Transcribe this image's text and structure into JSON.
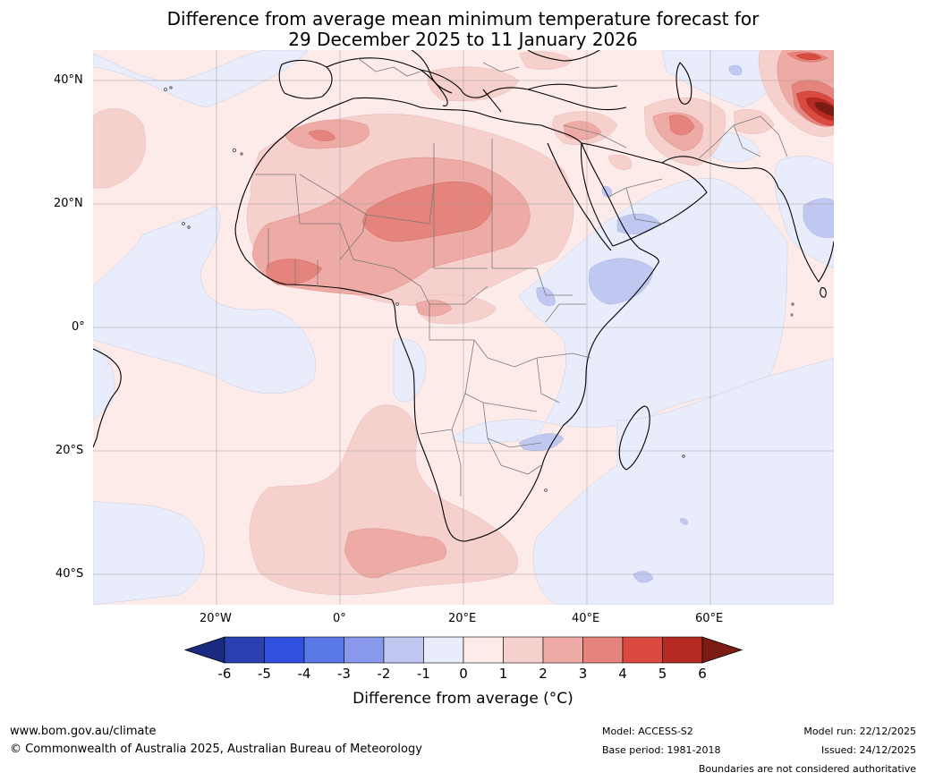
{
  "title": {
    "line1": "Difference from average mean minimum temperature forecast for",
    "line2": "29 December 2025 to 11 January 2026"
  },
  "axes": {
    "lat_labels": [
      "40°N",
      "20°N",
      "0°",
      "20°S",
      "40°S"
    ],
    "lon_labels": [
      "20°W",
      "0°",
      "20°E",
      "40°E",
      "60°E"
    ]
  },
  "colorbar": {
    "ticks": [
      "-6",
      "-5",
      "-4",
      "-3",
      "-2",
      "-1",
      "0",
      "1",
      "2",
      "3",
      "4",
      "5",
      "6"
    ],
    "colors": [
      "#1a2a80",
      "#2a40b0",
      "#3050e0",
      "#5a78e6",
      "#8898ea",
      "#c0c8f2",
      "#e8ecfb",
      "#fcebe9",
      "#f5d0cd",
      "#eeaaa5",
      "#e5847c",
      "#db4a3e",
      "#b52a23",
      "#7a1c14"
    ],
    "label": "Difference from average (°C)"
  },
  "footer": {
    "url": "www.bom.gov.au/climate",
    "copyright": "© Commonwealth of Australia 2025, Australian Bureau of Meteorology",
    "model": "Model: ACCESS-S2",
    "base_period": "Base period: 1981-2018",
    "model_run": "Model run: 22/12/2025",
    "issued": "Issued: 24/12/2025",
    "disclaimer": "Boundaries are not considered authoritative"
  }
}
